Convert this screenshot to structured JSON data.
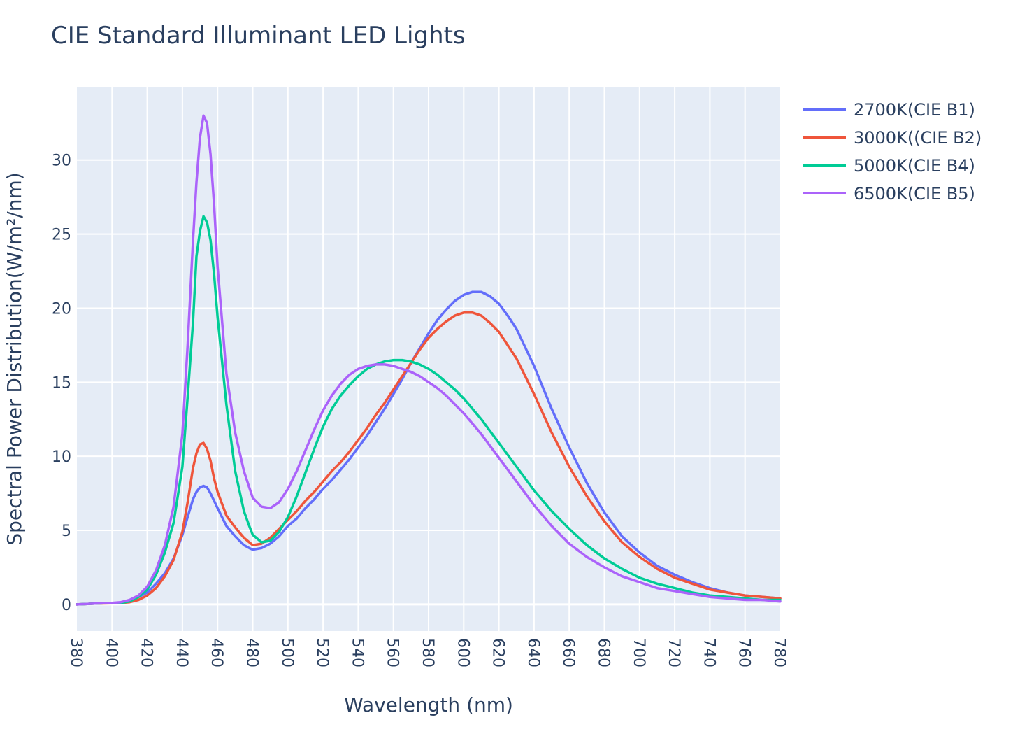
{
  "chart_data": {
    "type": "line",
    "title": "CIE Standard Illuminant LED Lights",
    "xlabel": "Wavelength (nm)",
    "ylabel": "Spectral Power Distribution(W/m²/nm)",
    "xlim": [
      380,
      780
    ],
    "ylim": [
      -1.8,
      34.9
    ],
    "grid": true,
    "legend_position": "top-right",
    "x_ticks": [
      380,
      400,
      420,
      440,
      460,
      480,
      500,
      520,
      540,
      560,
      580,
      600,
      620,
      640,
      660,
      680,
      700,
      720,
      740,
      760,
      780
    ],
    "y_ticks": [
      0,
      5,
      10,
      15,
      20,
      25,
      30
    ],
    "plot_background": "#e5ecf6",
    "grid_color": "#ffffff",
    "text_color": "#2a3f5f",
    "x": [
      380,
      390,
      400,
      405,
      410,
      415,
      420,
      425,
      430,
      435,
      440,
      443,
      446,
      448,
      450,
      452,
      454,
      456,
      458,
      460,
      465,
      470,
      475,
      478,
      480,
      485,
      490,
      495,
      500,
      505,
      510,
      515,
      520,
      525,
      530,
      535,
      540,
      545,
      550,
      555,
      560,
      565,
      570,
      575,
      580,
      585,
      590,
      595,
      600,
      605,
      610,
      615,
      620,
      625,
      630,
      640,
      650,
      660,
      670,
      680,
      690,
      700,
      710,
      720,
      730,
      740,
      750,
      760,
      770,
      780
    ],
    "series": [
      {
        "name": "2700K(CIE B1)",
        "color": "#636efa",
        "values": [
          0.0,
          0.05,
          0.1,
          0.1,
          0.2,
          0.5,
          0.8,
          1.4,
          2.1,
          3.1,
          4.7,
          5.9,
          7.1,
          7.6,
          7.9,
          8.0,
          7.9,
          7.5,
          7.0,
          6.5,
          5.3,
          4.6,
          4.0,
          3.8,
          3.7,
          3.8,
          4.1,
          4.6,
          5.3,
          5.8,
          6.5,
          7.1,
          7.8,
          8.4,
          9.1,
          9.8,
          10.6,
          11.4,
          12.3,
          13.2,
          14.2,
          15.2,
          16.3,
          17.3,
          18.3,
          19.2,
          19.9,
          20.5,
          20.9,
          21.1,
          21.1,
          20.8,
          20.3,
          19.5,
          18.6,
          16.1,
          13.2,
          10.6,
          8.2,
          6.2,
          4.6,
          3.5,
          2.6,
          2.0,
          1.5,
          1.1,
          0.8,
          0.6,
          0.5,
          0.4
        ]
      },
      {
        "name": "3000K((CIE B2)",
        "color": "#ef553b",
        "values": [
          0.0,
          0.05,
          0.08,
          0.1,
          0.15,
          0.3,
          0.6,
          1.1,
          1.9,
          3.0,
          4.9,
          6.9,
          9.2,
          10.2,
          10.8,
          10.9,
          10.5,
          9.7,
          8.5,
          7.6,
          6.0,
          5.2,
          4.5,
          4.2,
          4.0,
          4.1,
          4.5,
          5.1,
          5.7,
          6.3,
          7.0,
          7.6,
          8.3,
          9.0,
          9.6,
          10.3,
          11.1,
          11.9,
          12.8,
          13.6,
          14.5,
          15.4,
          16.3,
          17.2,
          18.0,
          18.6,
          19.1,
          19.5,
          19.7,
          19.7,
          19.5,
          19.0,
          18.4,
          17.5,
          16.6,
          14.2,
          11.6,
          9.3,
          7.3,
          5.6,
          4.2,
          3.2,
          2.4,
          1.8,
          1.4,
          1.0,
          0.8,
          0.6,
          0.5,
          0.4
        ]
      },
      {
        "name": "5000K(CIE B4)",
        "color": "#00cc96",
        "values": [
          0.0,
          0.05,
          0.1,
          0.1,
          0.2,
          0.5,
          1.0,
          2.0,
          3.5,
          5.5,
          9.3,
          14.0,
          19.0,
          23.5,
          25.2,
          26.2,
          25.8,
          24.6,
          22.3,
          19.4,
          13.5,
          9.0,
          6.3,
          5.3,
          4.7,
          4.2,
          4.3,
          4.9,
          5.9,
          7.3,
          8.9,
          10.5,
          12.0,
          13.2,
          14.1,
          14.8,
          15.4,
          15.9,
          16.2,
          16.4,
          16.5,
          16.5,
          16.4,
          16.2,
          15.9,
          15.5,
          15.0,
          14.5,
          13.9,
          13.2,
          12.5,
          11.7,
          10.9,
          10.1,
          9.3,
          7.7,
          6.3,
          5.1,
          4.0,
          3.1,
          2.4,
          1.8,
          1.4,
          1.1,
          0.8,
          0.6,
          0.5,
          0.4,
          0.3,
          0.3
        ]
      },
      {
        "name": "6500K(CIE B5)",
        "color": "#ab63fa",
        "values": [
          0.0,
          0.05,
          0.1,
          0.15,
          0.3,
          0.6,
          1.2,
          2.3,
          4.0,
          6.6,
          11.5,
          17.5,
          24.5,
          28.5,
          31.5,
          33.0,
          32.5,
          30.4,
          27.0,
          22.8,
          15.6,
          11.6,
          9.0,
          7.9,
          7.2,
          6.6,
          6.5,
          6.9,
          7.8,
          9.0,
          10.4,
          11.8,
          13.1,
          14.1,
          14.9,
          15.5,
          15.9,
          16.1,
          16.2,
          16.2,
          16.1,
          15.9,
          15.7,
          15.4,
          15.0,
          14.6,
          14.1,
          13.5,
          12.9,
          12.2,
          11.5,
          10.7,
          9.9,
          9.1,
          8.3,
          6.7,
          5.3,
          4.1,
          3.2,
          2.5,
          1.9,
          1.5,
          1.1,
          0.9,
          0.7,
          0.5,
          0.4,
          0.3,
          0.3,
          0.2
        ]
      }
    ]
  }
}
